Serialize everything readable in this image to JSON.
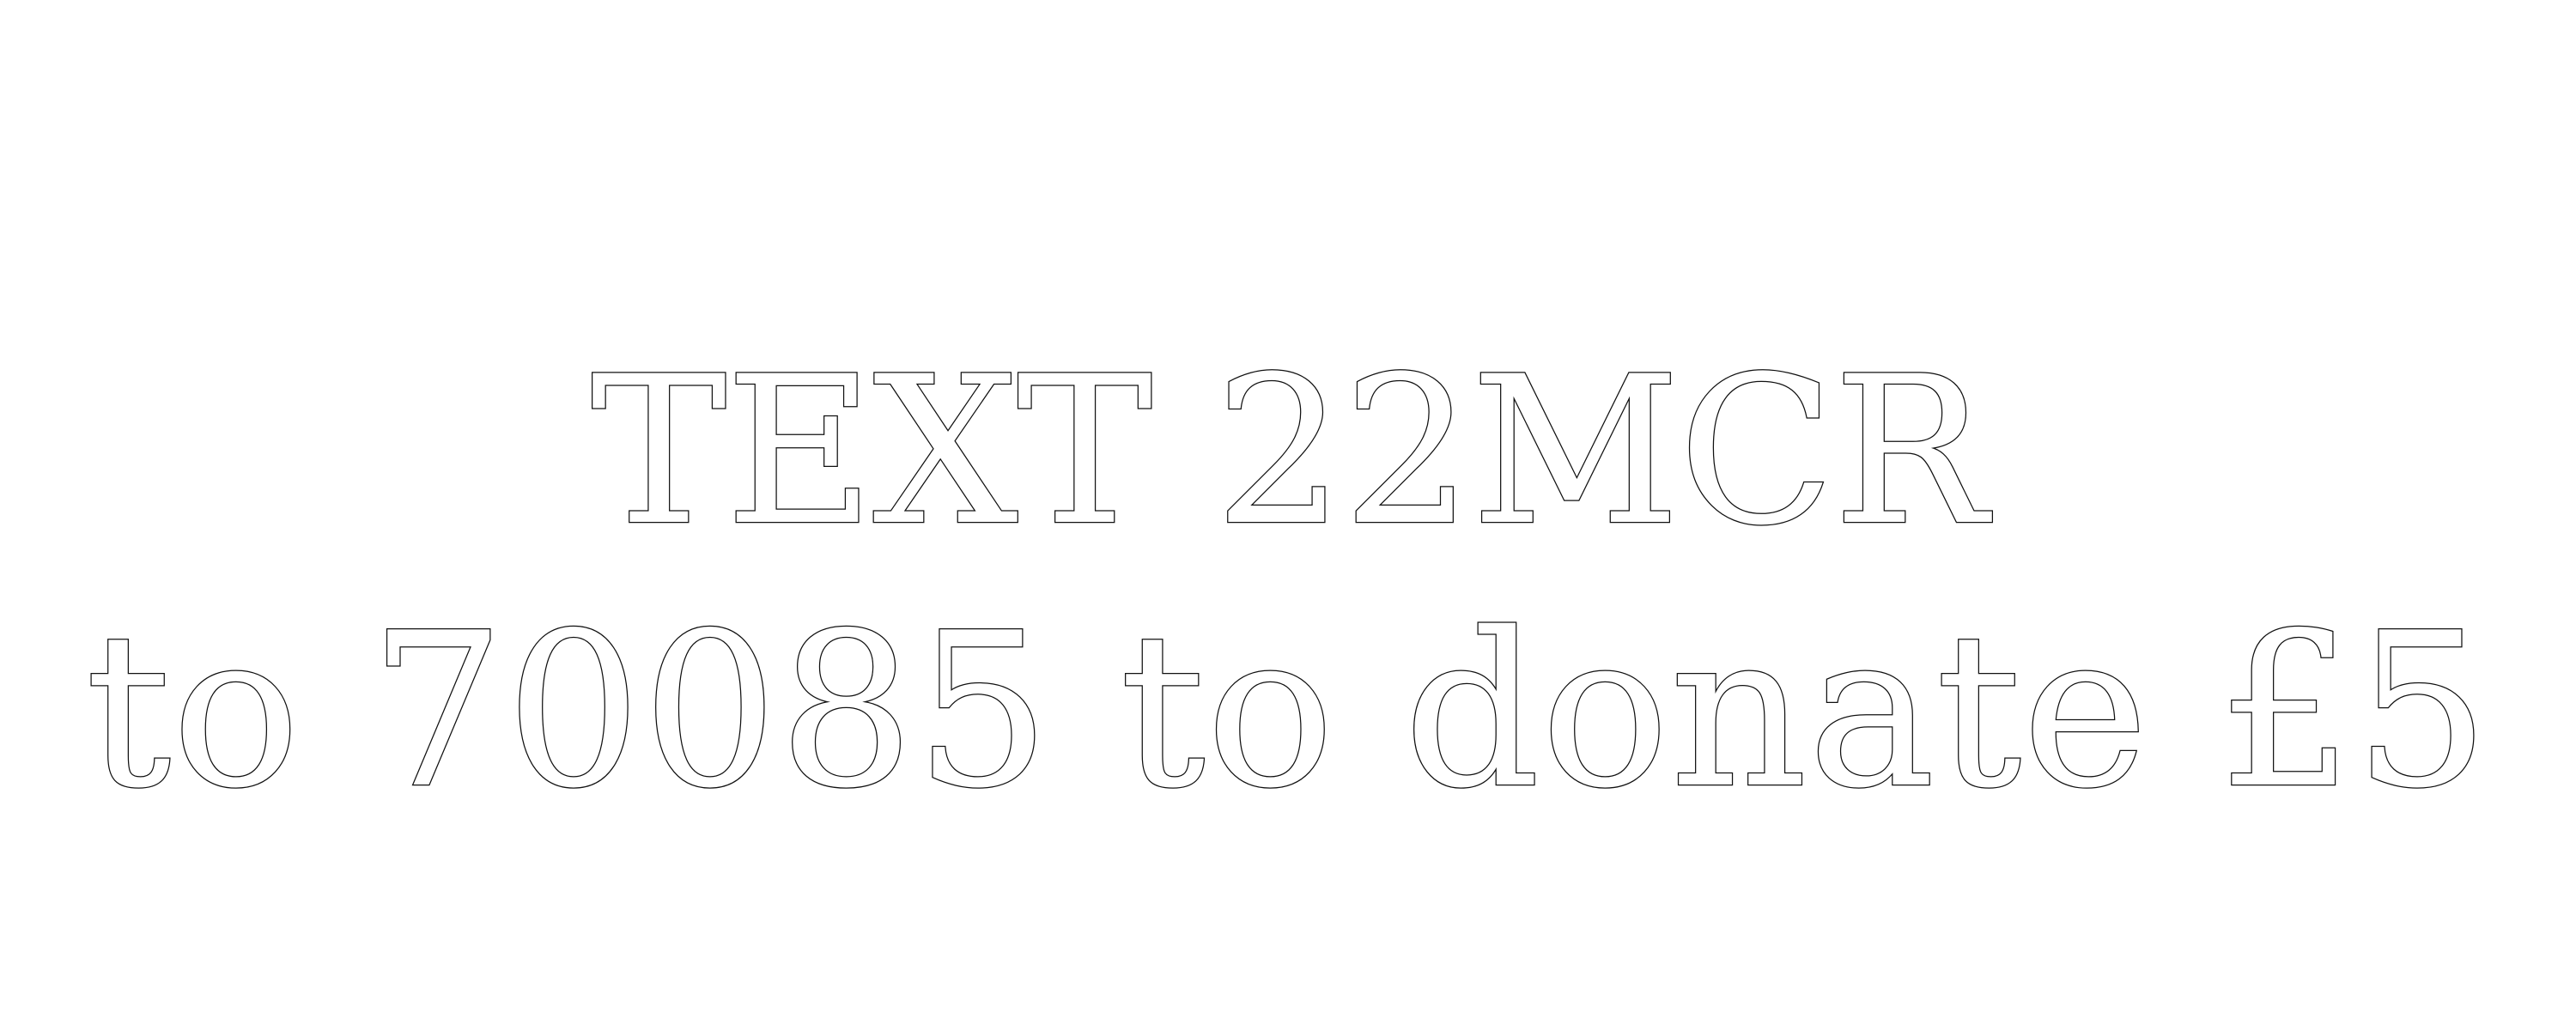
{
  "message": {
    "line1": "TEXT 22MCR",
    "line2": "to 70085 to donate £5"
  },
  "colors": {
    "background": "#ffffff",
    "text_fill": "#ffffff",
    "text_outline": "#111111"
  }
}
